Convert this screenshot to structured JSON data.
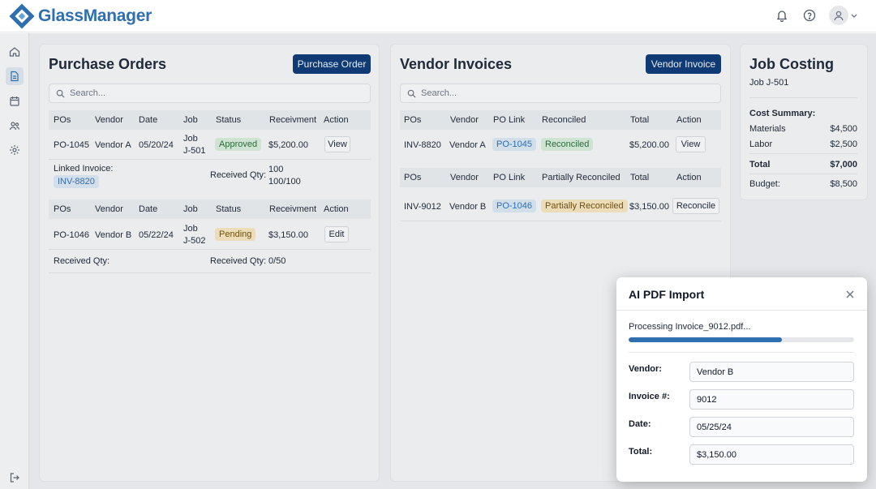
{
  "app": {
    "name": "GlassManager",
    "brand_color": "#2f6fb0",
    "accent_dark": "#0f3a73"
  },
  "header": {
    "icons": [
      "bell-icon",
      "help-icon",
      "user-avatar-icon",
      "chevron-down-icon"
    ]
  },
  "sidebar": {
    "items": [
      {
        "icon": "home-icon",
        "active": false
      },
      {
        "icon": "document-icon",
        "active": true
      },
      {
        "icon": "calendar-icon",
        "active": false
      },
      {
        "icon": "users-icon",
        "active": false
      },
      {
        "icon": "gear-icon",
        "active": false
      }
    ],
    "bottom": {
      "icon": "logout-icon"
    }
  },
  "purchase_orders": {
    "title": "Purchase Orders",
    "button": "Purchase Order",
    "search_placeholder": "Search...",
    "columns": [
      "POs",
      "Vendor",
      "Date",
      "Job",
      "Status",
      "Receivment",
      "Action"
    ],
    "orders": [
      {
        "po": "PO-1045",
        "vendor": "Vendor A",
        "date": "05/20/24",
        "job_line1": "Job",
        "job_line2": "J-501",
        "status": "Approved",
        "amount": "$5,200.00",
        "action": "View",
        "linked_label": "Linked Invoice:",
        "linked_value": "INV-8820",
        "received_label": "Received Qty:",
        "received_line1": "100",
        "received_line2": "100/100"
      },
      {
        "po": "PO-1046",
        "vendor": "Vendor B",
        "date": "05/22/24",
        "job_line1": "Job",
        "job_line2": "J-502",
        "status": "Pending",
        "amount": "$3,150.00",
        "action": "Edit",
        "linked_label": "Received Qty:",
        "received_label": "Received Qty:",
        "received_value": "0/50"
      }
    ]
  },
  "vendor_invoices": {
    "title": "Vendor Invoices",
    "button": "Vendor Invoice",
    "search_placeholder": "Search...",
    "tables": [
      {
        "columns": [
          "POs",
          "Vendor",
          "PO Link",
          "Reconciled",
          "Total",
          "Action"
        ],
        "row": {
          "inv": "INV-8820",
          "vendor": "Vendor A",
          "po_link": "PO-1045",
          "status": "Reconciled",
          "total": "$5,200.00",
          "action": "View"
        }
      },
      {
        "columns": [
          "POs",
          "Vendor",
          "PO Link",
          "Partially Reconciled",
          "Total",
          "Action"
        ],
        "row": {
          "inv": "INV-9012",
          "vendor": "Vendor B",
          "po_link": "PO-1046",
          "status": "Partially Reconciled",
          "total": "$3,150.00",
          "action": "Reconcile"
        }
      }
    ]
  },
  "job_costing": {
    "title": "Job Costing",
    "job": "Job J-501",
    "summary_title": "Cost Summary:",
    "lines": [
      {
        "label": "Materials",
        "value": "$4,500"
      },
      {
        "label": "Labor",
        "value": "$2,500"
      }
    ],
    "total": {
      "label": "Total",
      "value": "$7,000"
    },
    "budget": {
      "label": "Budget:",
      "value": "$8,500"
    }
  },
  "modal": {
    "title": "AI PDF Import",
    "processing_text": "Processing Invoice_9012.pdf...",
    "progress_percent": 68,
    "fields": [
      {
        "label": "Vendor:",
        "value": "Vendor B"
      },
      {
        "label": "Invoice #:",
        "value": "9012"
      },
      {
        "label": "Date:",
        "value": "05/25/24"
      },
      {
        "label": "Total:",
        "value": "$3,150.00"
      }
    ]
  }
}
